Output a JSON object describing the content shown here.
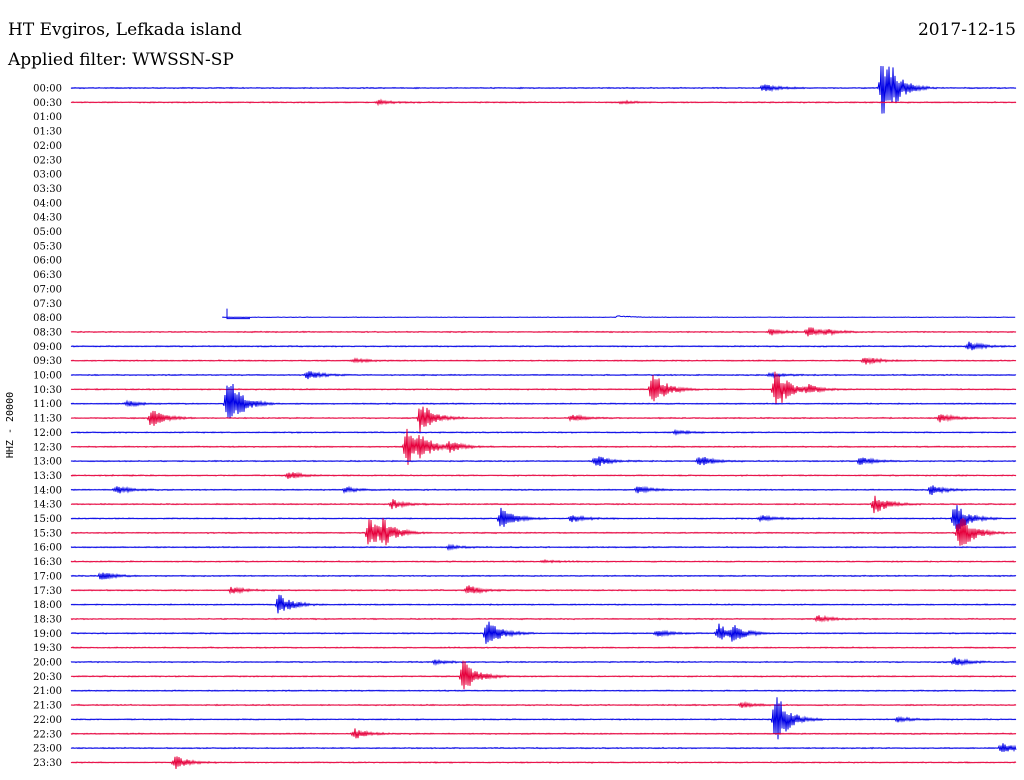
{
  "header": {
    "station": "HT Evgiros, Lefkada island",
    "filter_label": "Applied filter:",
    "filter": "WWSSN-SP",
    "date": "2017-12-15"
  },
  "channel_label": "HHZ - 20000",
  "colors": {
    "blue_trace": "#0000e6",
    "red_trace": "#e6003c",
    "text": "#000000",
    "background": "#ffffff"
  },
  "time_labels": [
    "00:00",
    "00:30",
    "01:00",
    "01:30",
    "02:00",
    "02:30",
    "03:00",
    "03:30",
    "04:00",
    "04:30",
    "05:00",
    "05:30",
    "06:00",
    "06:30",
    "07:00",
    "07:30",
    "08:00",
    "08:30",
    "09:00",
    "09:30",
    "10:00",
    "10:30",
    "11:00",
    "11:30",
    "12:00",
    "12:30",
    "13:00",
    "13:30",
    "14:00",
    "14:30",
    "15:00",
    "15:30",
    "16:00",
    "16:30",
    "17:00",
    "17:30",
    "18:00",
    "18:30",
    "19:00",
    "19:30",
    "20:00",
    "20:30",
    "21:00",
    "21:30",
    "22:00",
    "22:30",
    "23:00",
    "23:30"
  ],
  "traces": [
    {
      "row": 0,
      "start": 0.0,
      "end": 1.0,
      "events": [
        [
          0.733,
          0.6
        ],
        [
          0.858,
          4.5
        ],
        [
          0.867,
          1.6
        ]
      ]
    },
    {
      "row": 1,
      "start": 0.0,
      "end": 1.0,
      "events": [
        [
          0.325,
          0.3
        ],
        [
          0.583,
          0.2
        ]
      ]
    },
    {
      "row": 16,
      "start": 0.16,
      "end": 1.0,
      "events": [
        [
          0.58,
          0.3
        ]
      ]
    },
    {
      "row": 17,
      "start": 0.0,
      "end": 1.0,
      "events": [
        [
          0.74,
          0.5
        ],
        [
          0.78,
          0.8
        ],
        [
          0.8,
          0.3
        ]
      ]
    },
    {
      "row": 18,
      "start": 0.0,
      "end": 1.0,
      "events": [
        [
          0.95,
          0.7
        ]
      ]
    },
    {
      "row": 19,
      "start": 0.0,
      "end": 1.0,
      "events": [
        [
          0.3,
          0.3
        ],
        [
          0.84,
          0.6
        ]
      ]
    },
    {
      "row": 20,
      "start": 0.0,
      "end": 1.0,
      "events": [
        [
          0.25,
          0.7
        ],
        [
          0.74,
          0.3
        ]
      ]
    },
    {
      "row": 21,
      "start": 0.0,
      "end": 1.0,
      "events": [
        [
          0.615,
          3.0
        ],
        [
          0.745,
          3.5
        ],
        [
          0.78,
          0.6
        ]
      ]
    },
    {
      "row": 22,
      "start": 0.0,
      "end": 1.0,
      "events": [
        [
          0.06,
          0.4
        ],
        [
          0.165,
          3.0
        ],
        [
          0.17,
          1.2
        ]
      ]
    },
    {
      "row": 23,
      "start": 0.0,
      "end": 1.0,
      "events": [
        [
          0.085,
          1.5
        ],
        [
          0.37,
          2.5
        ],
        [
          0.53,
          0.5
        ],
        [
          0.92,
          0.6
        ]
      ]
    },
    {
      "row": 24,
      "start": 0.0,
      "end": 1.0,
      "events": [
        [
          0.64,
          0.3
        ]
      ]
    },
    {
      "row": 25,
      "start": 0.0,
      "end": 1.0,
      "events": [
        [
          0.355,
          3.0
        ],
        [
          0.37,
          1.2
        ],
        [
          0.4,
          0.8
        ]
      ]
    },
    {
      "row": 26,
      "start": 0.0,
      "end": 1.0,
      "events": [
        [
          0.555,
          0.9
        ],
        [
          0.665,
          0.9
        ],
        [
          0.835,
          0.6
        ]
      ]
    },
    {
      "row": 27,
      "start": 0.0,
      "end": 1.0,
      "events": [
        [
          0.23,
          0.6
        ]
      ]
    },
    {
      "row": 28,
      "start": 0.0,
      "end": 1.0,
      "events": [
        [
          0.048,
          0.6
        ],
        [
          0.29,
          0.4
        ],
        [
          0.6,
          0.5
        ],
        [
          0.91,
          0.8
        ]
      ]
    },
    {
      "row": 29,
      "start": 0.0,
      "end": 1.0,
      "events": [
        [
          0.34,
          0.7
        ],
        [
          0.85,
          1.4
        ]
      ]
    },
    {
      "row": 30,
      "start": 0.0,
      "end": 1.0,
      "events": [
        [
          0.455,
          1.8
        ],
        [
          0.53,
          0.6
        ],
        [
          0.73,
          0.5
        ],
        [
          0.935,
          2.4
        ]
      ]
    },
    {
      "row": 31,
      "start": 0.0,
      "end": 1.0,
      "events": [
        [
          0.315,
          2.4
        ],
        [
          0.33,
          1.6
        ],
        [
          0.94,
          3.2
        ]
      ]
    },
    {
      "row": 32,
      "start": 0.0,
      "end": 1.0,
      "events": [
        [
          0.4,
          0.3
        ]
      ]
    },
    {
      "row": 33,
      "start": 0.0,
      "end": 1.0,
      "events": [
        [
          0.5,
          0.2
        ]
      ]
    },
    {
      "row": 34,
      "start": 0.0,
      "end": 1.0,
      "events": [
        [
          0.032,
          0.6
        ]
      ]
    },
    {
      "row": 35,
      "start": 0.0,
      "end": 1.0,
      "events": [
        [
          0.17,
          0.5
        ],
        [
          0.42,
          0.7
        ]
      ]
    },
    {
      "row": 36,
      "start": 0.0,
      "end": 1.0,
      "events": [
        [
          0.22,
          1.6
        ]
      ]
    },
    {
      "row": 37,
      "start": 0.0,
      "end": 1.0,
      "events": [
        [
          0.79,
          0.5
        ]
      ]
    },
    {
      "row": 38,
      "start": 0.0,
      "end": 1.0,
      "events": [
        [
          0.44,
          2.4
        ],
        [
          0.62,
          0.5
        ],
        [
          0.685,
          1.4
        ],
        [
          0.7,
          1.0
        ]
      ]
    },
    {
      "row": 39,
      "start": 0.0,
      "end": 1.0,
      "events": []
    },
    {
      "row": 40,
      "start": 0.0,
      "end": 1.0,
      "events": [
        [
          0.385,
          0.3
        ],
        [
          0.935,
          0.6
        ]
      ]
    },
    {
      "row": 41,
      "start": 0.0,
      "end": 1.0,
      "events": [
        [
          0.415,
          2.6
        ]
      ]
    },
    {
      "row": 42,
      "start": 0.0,
      "end": 1.0,
      "events": []
    },
    {
      "row": 43,
      "start": 0.0,
      "end": 1.0,
      "events": [
        [
          0.71,
          0.4
        ]
      ]
    },
    {
      "row": 44,
      "start": 0.0,
      "end": 1.0,
      "events": [
        [
          0.745,
          4.5
        ],
        [
          0.875,
          0.4
        ]
      ]
    },
    {
      "row": 45,
      "start": 0.0,
      "end": 1.0,
      "events": [
        [
          0.3,
          0.8
        ]
      ]
    },
    {
      "row": 46,
      "start": 0.0,
      "end": 1.0,
      "events": [
        [
          0.985,
          0.8
        ]
      ]
    },
    {
      "row": 47,
      "start": 0.0,
      "end": 1.0,
      "events": [
        [
          0.11,
          1.1
        ]
      ]
    }
  ]
}
